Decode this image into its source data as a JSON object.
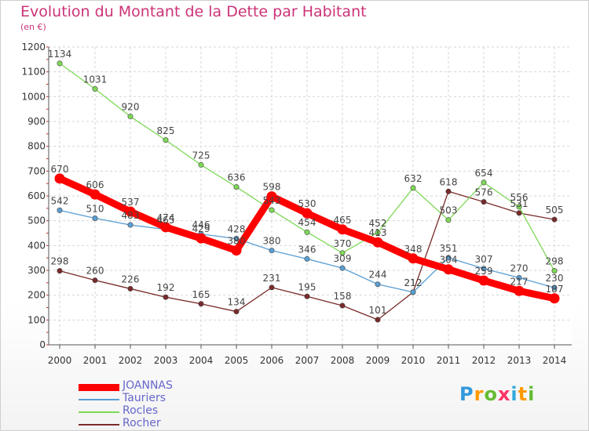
{
  "title": "Evolution du Montant de la Dette par Habitant",
  "unit": "(en €)",
  "logo": "Proxiti",
  "chart_data": {
    "type": "line",
    "title": "Evolution du Montant de la Dette par Habitant",
    "ylabel": "(en €)",
    "xlabel": "",
    "x": [
      "2000",
      "2001",
      "2002",
      "2003",
      "2004",
      "2005",
      "2006",
      "2007",
      "2008",
      "2009",
      "2010",
      "2011",
      "2012",
      "2013",
      "2014"
    ],
    "ylim": [
      0,
      1200
    ],
    "yticks": [
      0,
      100,
      200,
      300,
      400,
      500,
      600,
      700,
      800,
      900,
      1000,
      1100,
      1200
    ],
    "grid": true,
    "legend_position": "bottom-left",
    "series": [
      {
        "name": "JOANNAS",
        "color": "#ff0000",
        "values": [
          670,
          606,
          537,
          474,
          429,
          380,
          598,
          530,
          465,
          413,
          348,
          304,
          259,
          217,
          187
        ]
      },
      {
        "name": "Tauriers",
        "color": "#5a9fd4",
        "values": [
          542,
          510,
          483,
          465,
          446,
          428,
          380,
          346,
          309,
          244,
          212,
          351,
          307,
          270,
          230
        ]
      },
      {
        "name": "Rocles",
        "color": "#7ed957",
        "values": [
          1134,
          1031,
          920,
          825,
          725,
          636,
          543,
          454,
          370,
          452,
          632,
          503,
          654,
          556,
          298
        ]
      },
      {
        "name": "Rocher",
        "color": "#7a2a2a",
        "values": [
          298,
          260,
          226,
          192,
          165,
          134,
          231,
          195,
          158,
          101,
          212,
          618,
          576,
          531,
          505
        ]
      }
    ]
  }
}
